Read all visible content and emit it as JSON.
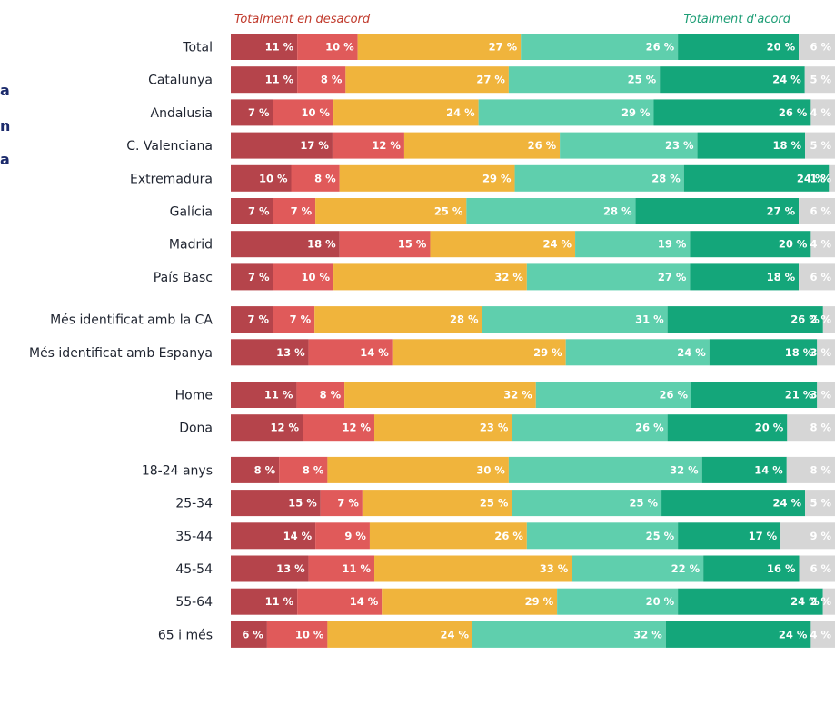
{
  "left_snippets": [
    "a",
    "n",
    "a"
  ],
  "chart_data": {
    "type": "bar",
    "orientation": "horizontal",
    "stacked": true,
    "normalized": true,
    "legend": {
      "left_label": "Totalment en desacord",
      "right_label": "Totalment d'acord",
      "left_color": "#c0392b",
      "right_color": "#1e9e76",
      "placement": "top"
    },
    "segment_colors": [
      "#b5444b",
      "#e05a5a",
      "#f0b43c",
      "#5fcfad",
      "#14a67a",
      "#d6d6d6"
    ],
    "categories": [
      "Total",
      "Catalunya",
      "Andalusia",
      "C. Valenciana",
      "Extremadura",
      "Galícia",
      "Madrid",
      "País Basc",
      "Més identificat amb la CA",
      "Més identificat amb Espanya",
      "Home",
      "Dona",
      "18-24 anys",
      "25-34",
      "35-44",
      "45-54",
      "55-64",
      "65 i més"
    ],
    "groups": [
      8,
      2,
      2,
      6
    ],
    "series": [
      {
        "values": [
          11,
          11,
          7,
          17,
          10,
          7,
          18,
          7,
          7,
          13,
          11,
          12,
          8,
          15,
          14,
          13,
          11,
          6
        ]
      },
      {
        "values": [
          10,
          8,
          10,
          12,
          8,
          7,
          15,
          10,
          7,
          14,
          8,
          12,
          8,
          7,
          9,
          11,
          14,
          10
        ]
      },
      {
        "values": [
          27,
          27,
          24,
          26,
          29,
          25,
          24,
          32,
          28,
          29,
          32,
          23,
          30,
          25,
          26,
          33,
          29,
          24
        ]
      },
      {
        "values": [
          26,
          25,
          29,
          23,
          28,
          28,
          19,
          27,
          31,
          24,
          26,
          26,
          32,
          25,
          25,
          22,
          20,
          32
        ]
      },
      {
        "values": [
          20,
          24,
          26,
          18,
          24,
          27,
          20,
          18,
          26,
          18,
          21,
          20,
          14,
          24,
          17,
          16,
          24,
          24
        ]
      },
      {
        "values": [
          6,
          5,
          4,
          5,
          1,
          6,
          4,
          6,
          2,
          3,
          3,
          8,
          8,
          5,
          9,
          6,
          2,
          4
        ]
      }
    ],
    "value_suffix": " %"
  }
}
